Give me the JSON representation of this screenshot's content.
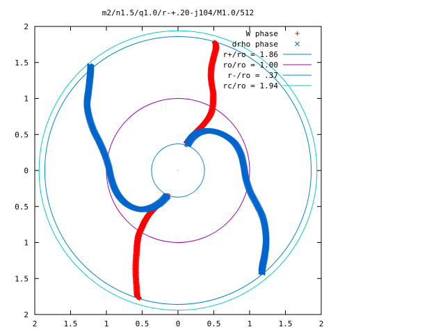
{
  "chart_data": {
    "type": "scatter",
    "title": "m2/n1.5/q1.0/r-+.20-j104/M1.0/512",
    "xlabel": "",
    "ylabel": "",
    "xlim": [
      -2,
      2
    ],
    "ylim": [
      -2,
      2
    ],
    "x_ticks": [
      -2,
      -1.5,
      -1,
      -0.5,
      0,
      0.5,
      1,
      1.5,
      2
    ],
    "y_ticks": [
      -2,
      -1.5,
      -1,
      -0.5,
      0,
      0.5,
      1,
      1.5,
      2
    ],
    "x_tick_labels": [
      "2",
      "1.5",
      "1",
      "0.5",
      "0",
      "0.5",
      "1",
      "1.5",
      "2"
    ],
    "y_tick_labels": [
      "2",
      "1.5",
      "1",
      "0.5",
      "0",
      "0.5",
      "1",
      "1.5",
      "2"
    ],
    "grid": false,
    "legend_position": "top-right",
    "series": [
      {
        "name": "W phase",
        "kind": "points",
        "marker": "+",
        "color": "#ff0000",
        "arms": [
          [
            [
              0.12,
              0.38
            ],
            [
              0.18,
              0.46
            ],
            [
              0.26,
              0.54
            ],
            [
              0.34,
              0.62
            ],
            [
              0.42,
              0.72
            ],
            [
              0.47,
              0.82
            ],
            [
              0.49,
              0.95
            ],
            [
              0.49,
              1.08
            ],
            [
              0.47,
              1.2
            ],
            [
              0.46,
              1.32
            ],
            [
              0.47,
              1.45
            ],
            [
              0.5,
              1.58
            ],
            [
              0.53,
              1.7
            ],
            [
              0.52,
              1.78
            ]
          ],
          [
            [
              -0.15,
              -0.35
            ],
            [
              -0.22,
              -0.42
            ],
            [
              -0.3,
              -0.5
            ],
            [
              -0.38,
              -0.58
            ],
            [
              -0.45,
              -0.68
            ],
            [
              -0.5,
              -0.78
            ],
            [
              -0.55,
              -0.9
            ],
            [
              -0.57,
              -1.02
            ],
            [
              -0.58,
              -1.15
            ],
            [
              -0.59,
              -1.3
            ],
            [
              -0.59,
              -1.45
            ],
            [
              -0.58,
              -1.6
            ],
            [
              -0.57,
              -1.73
            ],
            [
              -0.55,
              -1.77
            ]
          ]
        ]
      },
      {
        "name": "drho phase",
        "kind": "points",
        "marker": "x",
        "color": "#0066cc",
        "arms": [
          [
            [
              0.13,
              0.36
            ],
            [
              0.2,
              0.46
            ],
            [
              0.3,
              0.53
            ],
            [
              0.42,
              0.55
            ],
            [
              0.55,
              0.53
            ],
            [
              0.68,
              0.47
            ],
            [
              0.8,
              0.37
            ],
            [
              0.88,
              0.22
            ],
            [
              0.92,
              0.05
            ],
            [
              0.95,
              -0.12
            ],
            [
              1.01,
              -0.3
            ],
            [
              1.1,
              -0.47
            ],
            [
              1.18,
              -0.64
            ],
            [
              1.22,
              -0.82
            ],
            [
              1.23,
              -1.0
            ],
            [
              1.21,
              -1.18
            ],
            [
              1.18,
              -1.33
            ],
            [
              1.17,
              -1.42
            ]
          ],
          [
            [
              -0.15,
              -0.35
            ],
            [
              -0.25,
              -0.45
            ],
            [
              -0.38,
              -0.52
            ],
            [
              -0.52,
              -0.54
            ],
            [
              -0.66,
              -0.5
            ],
            [
              -0.78,
              -0.41
            ],
            [
              -0.87,
              -0.28
            ],
            [
              -0.93,
              -0.12
            ],
            [
              -0.97,
              0.06
            ],
            [
              -1.03,
              0.24
            ],
            [
              -1.1,
              0.4
            ],
            [
              -1.18,
              0.56
            ],
            [
              -1.24,
              0.74
            ],
            [
              -1.27,
              0.92
            ],
            [
              -1.25,
              1.1
            ],
            [
              -1.23,
              1.28
            ],
            [
              -1.22,
              1.4
            ],
            [
              -1.22,
              1.45
            ]
          ]
        ]
      },
      {
        "name": "r+/ro = 1.86",
        "kind": "circle",
        "radius": 1.86,
        "color": "#0088cc"
      },
      {
        "name": "ro/ro = 1.00",
        "kind": "circle",
        "radius": 1.0,
        "color": "#a000b0"
      },
      {
        "name": "r-/ro = .37",
        "kind": "circle",
        "radius": 0.37,
        "color": "#0088cc"
      },
      {
        "name": "rc/ro = 1.94",
        "kind": "circle",
        "radius": 1.94,
        "color": "#00cccc"
      }
    ]
  }
}
